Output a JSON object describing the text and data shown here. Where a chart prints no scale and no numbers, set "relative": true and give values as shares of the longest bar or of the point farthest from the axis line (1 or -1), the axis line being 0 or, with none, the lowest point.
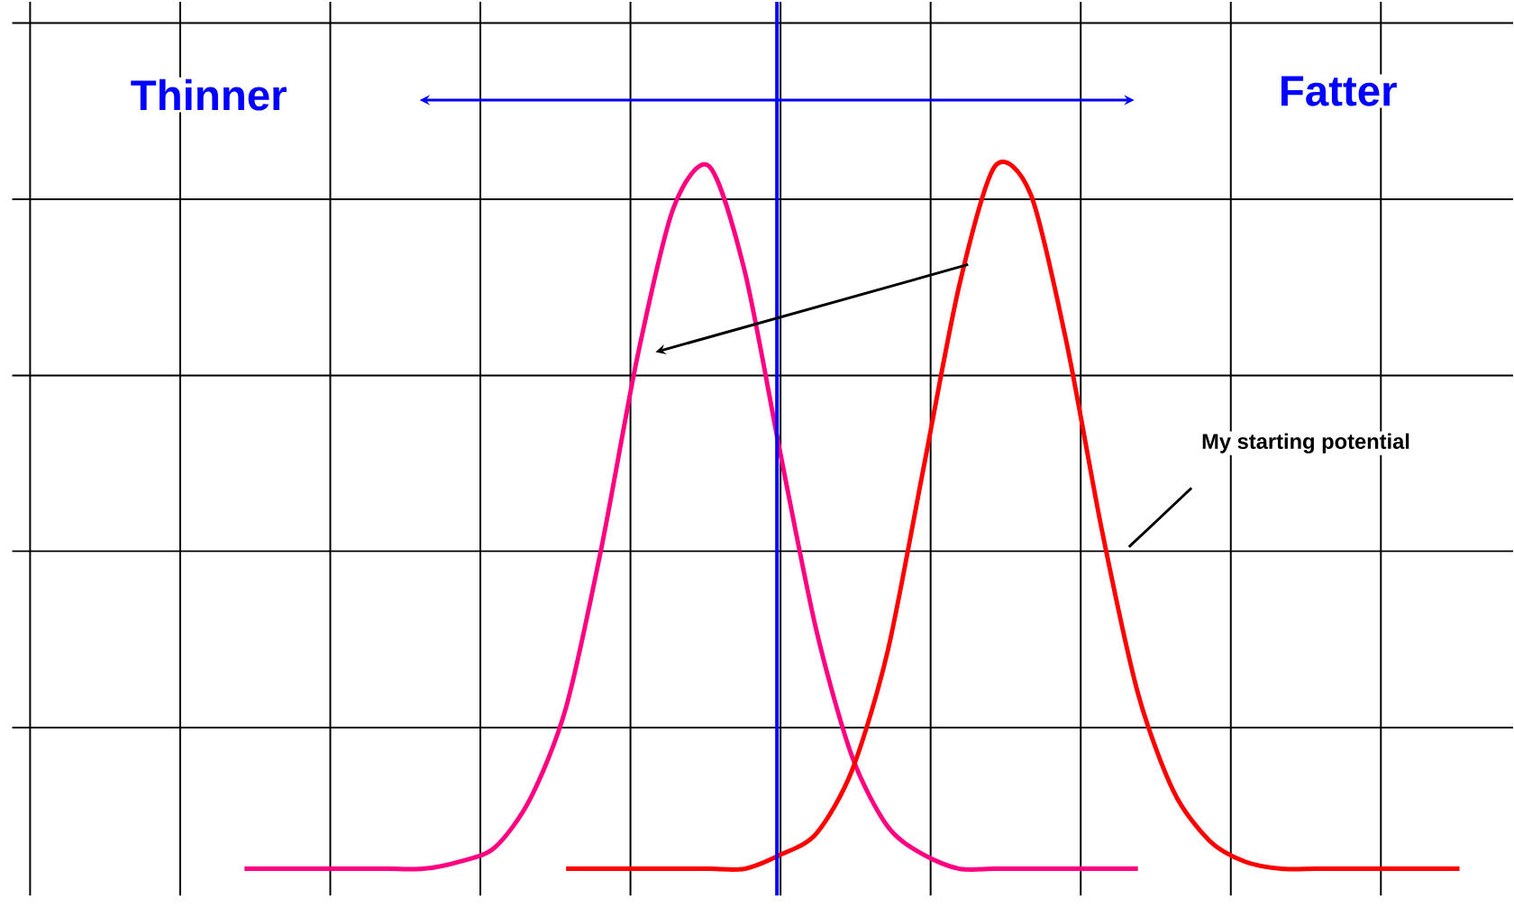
{
  "chart_data": {
    "type": "line",
    "relative": true,
    "grid": true,
    "marker": "none",
    "line_style": "solid",
    "categories": [
      null,
      null,
      null,
      null,
      null,
      null,
      null,
      null,
      null,
      null,
      null,
      null,
      null,
      null,
      null,
      null,
      null,
      null,
      null,
      null,
      null,
      null,
      null,
      null,
      null,
      null,
      null,
      null,
      null,
      null,
      null,
      null,
      null,
      null,
      null
    ],
    "series": [
      {
        "color": "#ff0080",
        "values": [
          0,
          0,
          0,
          0,
          0,
          0,
          0.01,
          0.03,
          0.1,
          0.23,
          0.46,
          0.73,
          0.94,
          1,
          0.85,
          0.59,
          0.34,
          0.16,
          0.06,
          0.02,
          0,
          0,
          0,
          0,
          0,
          0,
          null,
          null,
          null,
          null,
          null,
          null,
          null,
          null,
          null
        ]
      },
      {
        "color": "#ff0000",
        "values": [
          null,
          null,
          null,
          null,
          null,
          null,
          null,
          null,
          null,
          0,
          0,
          0,
          0,
          0,
          0,
          0.02,
          0.05,
          0.14,
          0.31,
          0.57,
          0.83,
          1,
          0.96,
          0.75,
          0.48,
          0.25,
          0.11,
          0.04,
          0.01,
          0,
          0,
          0,
          0,
          0,
          0
        ]
      }
    ],
    "annotations": [
      "Thinner",
      "Fatter",
      "My starting potential"
    ]
  }
}
